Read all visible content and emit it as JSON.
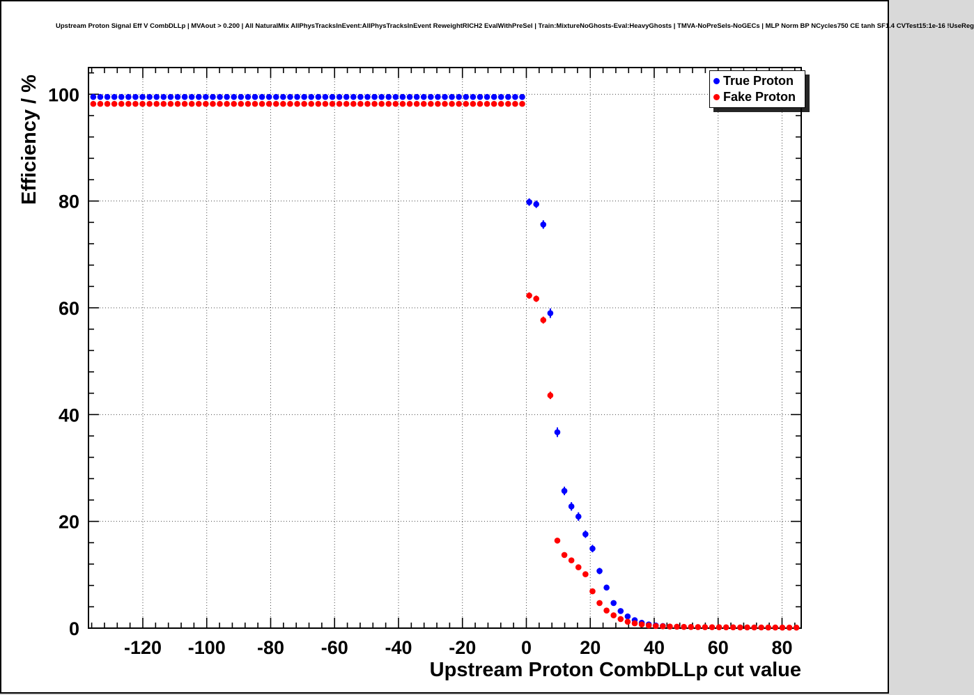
{
  "chart_data": {
    "type": "scatter",
    "title": "Upstream Proton Signal Eff V CombDLLp | MVAout > 0.200 | All NaturalMix AllPhysTracksInEvent:AllPhysTracksInEvent ReweightRICH2 EvalWithPreSel | Train:MixtureNoGhosts-Eval:HeavyGhosts | TMVA-NoPreSels-NoGECs | MLP Norm BP NCycles750 CE tanh SF1.4 CVTest15:1e-16 !UseReg",
    "xlabel": "Upstream Proton CombDLLp cut value",
    "ylabel": "Efficiency / %",
    "xlim": [
      -137,
      86
    ],
    "ylim": [
      0,
      105
    ],
    "x_ticks": [
      -120,
      -100,
      -80,
      -60,
      -40,
      -20,
      0,
      20,
      40,
      60,
      80
    ],
    "y_ticks": [
      0,
      20,
      40,
      60,
      80,
      100
    ],
    "x_minor_step": 4,
    "y_minor_step": 4,
    "grid": "dotted",
    "legend_position": "top-right",
    "flat_x": [
      -135.5,
      -133.3,
      -131.1,
      -128.9,
      -126.7,
      -124.5,
      -122.3,
      -120.1,
      -117.9,
      -115.7,
      -113.5,
      -111.3,
      -109.1,
      -106.9,
      -104.7,
      -102.5,
      -100.3,
      -98.1,
      -95.9,
      -93.7,
      -91.5,
      -89.3,
      -87.1,
      -84.9,
      -82.7,
      -80.5,
      -78.3,
      -76.1,
      -73.9,
      -71.7,
      -69.5,
      -67.3,
      -65.1,
      -62.9,
      -60.7,
      -58.5,
      -56.3,
      -54.1,
      -51.9,
      -49.7,
      -47.5,
      -45.3,
      -43.1,
      -40.9,
      -38.7,
      -36.5,
      -34.3,
      -32.1,
      -29.9,
      -27.7,
      -25.5,
      -23.3,
      -21.1,
      -18.9,
      -16.7,
      -14.5,
      -12.3,
      -10.1,
      -7.9,
      -5.7,
      -3.5,
      -1.3
    ],
    "series": [
      {
        "name": "True Proton",
        "color": "#0000ff",
        "flat_y": 99.5,
        "drop_x": [
          0.9,
          3.1,
          5.3,
          7.5,
          9.7,
          11.9,
          14.1,
          16.3,
          18.5,
          20.7,
          22.9,
          25.1,
          27.3,
          29.5,
          31.7,
          33.9,
          36.1,
          38.3,
          40.5,
          42.7
        ],
        "drop_y": [
          79.8,
          79.4,
          75.6,
          59.0,
          36.7,
          25.7,
          22.8,
          20.9,
          17.6,
          14.9,
          10.7,
          7.6,
          4.7,
          3.2,
          2.2,
          1.5,
          1.0,
          0.7,
          0.5,
          0.4
        ],
        "drop_err": [
          0.7,
          0.7,
          0.8,
          0.9,
          0.9,
          0.8,
          0.8,
          0.8,
          0.7,
          0.7,
          0.6,
          0.5,
          0.4,
          0.35,
          0.3,
          0.25,
          0.2,
          0.15,
          0.12,
          0.1
        ]
      },
      {
        "name": "Fake Proton",
        "color": "#ff0000",
        "flat_y": 98.2,
        "drop_x": [
          0.9,
          3.1,
          5.3,
          7.5,
          9.7,
          11.9,
          14.1,
          16.3,
          18.5,
          20.7,
          22.9,
          25.1,
          27.3,
          29.5,
          31.7,
          33.9,
          36.1,
          38.3,
          40.5,
          42.7,
          44.9,
          47.1,
          49.3,
          51.5,
          53.7,
          55.9,
          58.1,
          60.3,
          62.5,
          64.7,
          66.9,
          69.1,
          71.3,
          73.5,
          75.7,
          77.9,
          80.1,
          82.3,
          84.5
        ],
        "drop_y": [
          62.3,
          61.7,
          57.7,
          43.6,
          16.4,
          13.7,
          12.7,
          11.4,
          10.1,
          6.9,
          4.7,
          3.3,
          2.4,
          1.7,
          1.2,
          0.9,
          0.7,
          0.5,
          0.4,
          0.35,
          0.3,
          0.27,
          0.24,
          0.22,
          0.2,
          0.19,
          0.18,
          0.17,
          0.16,
          0.15,
          0.14,
          0.14,
          0.13,
          0.13,
          0.12,
          0.12,
          0.11,
          0.11,
          0.1
        ],
        "drop_err": [
          0.6,
          0.6,
          0.65,
          0.7,
          0.5,
          0.45,
          0.45,
          0.4,
          0.4,
          0.35,
          0.3,
          0.25,
          0.2,
          0.18,
          0.15,
          0.13,
          0.11,
          0.1,
          0.09,
          0.08,
          0.08,
          0.07,
          0.07,
          0.06,
          0.06,
          0.06,
          0.05,
          0.05,
          0.05,
          0.05,
          0.04,
          0.04,
          0.04,
          0.04,
          0.04,
          0.03,
          0.03,
          0.03,
          0.03
        ]
      }
    ]
  }
}
